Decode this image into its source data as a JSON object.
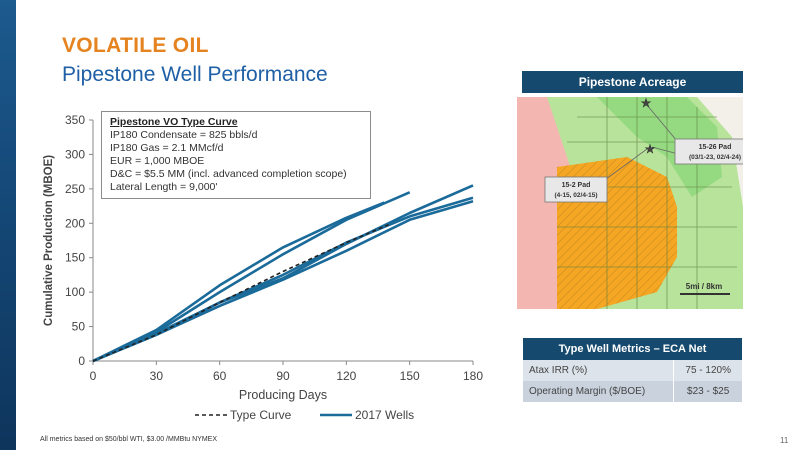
{
  "slide": {
    "headline": "VOLATILE OIL",
    "subtitle": "Pipestone Well Performance",
    "footnote": "All metrics based on $50/bbl WTI, $3.00 /MMBtu NYMEX",
    "page_number": "11"
  },
  "colors": {
    "sidebar": "#1d5a8e",
    "headline": "#e4831f",
    "subtitle": "#1f5fa6",
    "series_wells": "#1a6a9a",
    "series_type": "#222222",
    "panel_header": "#16496e"
  },
  "chart_data": {
    "type": "line",
    "xlabel": "Producing Days",
    "ylabel": "Cumulative Production (MBOE)",
    "xlim": [
      0,
      180
    ],
    "ylim": [
      0,
      350
    ],
    "xticks": [
      0,
      30,
      60,
      90,
      120,
      150,
      180
    ],
    "yticks": [
      0,
      50,
      100,
      150,
      200,
      250,
      300,
      350
    ],
    "grid": false,
    "legend_position": "bottom",
    "legend": [
      {
        "label": "Type Curve",
        "style": "dashed"
      },
      {
        "label": "2017 Wells",
        "style": "solid"
      }
    ],
    "series": [
      {
        "name": "Type Curve",
        "style": "dashed",
        "points": [
          [
            0,
            0
          ],
          [
            30,
            38
          ],
          [
            60,
            85
          ],
          [
            90,
            130
          ],
          [
            120,
            172
          ],
          [
            140,
            198
          ]
        ]
      },
      {
        "name": "2017 Wells",
        "style": "solid",
        "points": [
          [
            0,
            0
          ],
          [
            30,
            45
          ],
          [
            60,
            110
          ],
          [
            90,
            165
          ],
          [
            120,
            208
          ],
          [
            138,
            230
          ]
        ]
      },
      {
        "name": "2017 Wells",
        "style": "solid",
        "points": [
          [
            0,
            0
          ],
          [
            30,
            42
          ],
          [
            60,
            100
          ],
          [
            90,
            155
          ],
          [
            120,
            205
          ],
          [
            150,
            245
          ]
        ]
      },
      {
        "name": "2017 Wells",
        "style": "solid",
        "points": [
          [
            0,
            0
          ],
          [
            30,
            38
          ],
          [
            60,
            85
          ],
          [
            90,
            120
          ],
          [
            120,
            170
          ],
          [
            150,
            215
          ],
          [
            180,
            255
          ]
        ]
      },
      {
        "name": "2017 Wells",
        "style": "solid",
        "points": [
          [
            0,
            0
          ],
          [
            30,
            40
          ],
          [
            60,
            85
          ],
          [
            90,
            125
          ],
          [
            120,
            172
          ],
          [
            150,
            210
          ],
          [
            180,
            237
          ]
        ]
      },
      {
        "name": "2017 Wells",
        "style": "solid",
        "points": [
          [
            0,
            0
          ],
          [
            30,
            38
          ],
          [
            60,
            80
          ],
          [
            90,
            118
          ],
          [
            120,
            160
          ],
          [
            150,
            205
          ],
          [
            180,
            232
          ]
        ]
      }
    ]
  },
  "type_curve_box": {
    "title": "Pipestone VO Type Curve",
    "lines": [
      "IP180 Condensate = 825 bbls/d",
      "IP180 Gas = 2.1 MMcf/d",
      "EUR = 1,000 MBOE",
      "D&C = $5.5 MM (incl. advanced completion scope)",
      "Lateral Length = 9,000'"
    ]
  },
  "map": {
    "title": "Pipestone Acreage",
    "callout_1": {
      "line1": "15-26 Pad",
      "line2": "(03/1-23, 02/4-24)"
    },
    "callout_2": {
      "line1": "15-2 Pad",
      "line2": "(4-15, 02/4-15)"
    },
    "scale_label": "5mi / 8km"
  },
  "metrics_table": {
    "title": "Type Well Metrics – ECA Net",
    "rows": [
      {
        "label": "Atax IRR (%)",
        "value": "75 - 120%"
      },
      {
        "label": "Operating Margin ($/BOE)",
        "value": "$23 - $25"
      }
    ]
  }
}
